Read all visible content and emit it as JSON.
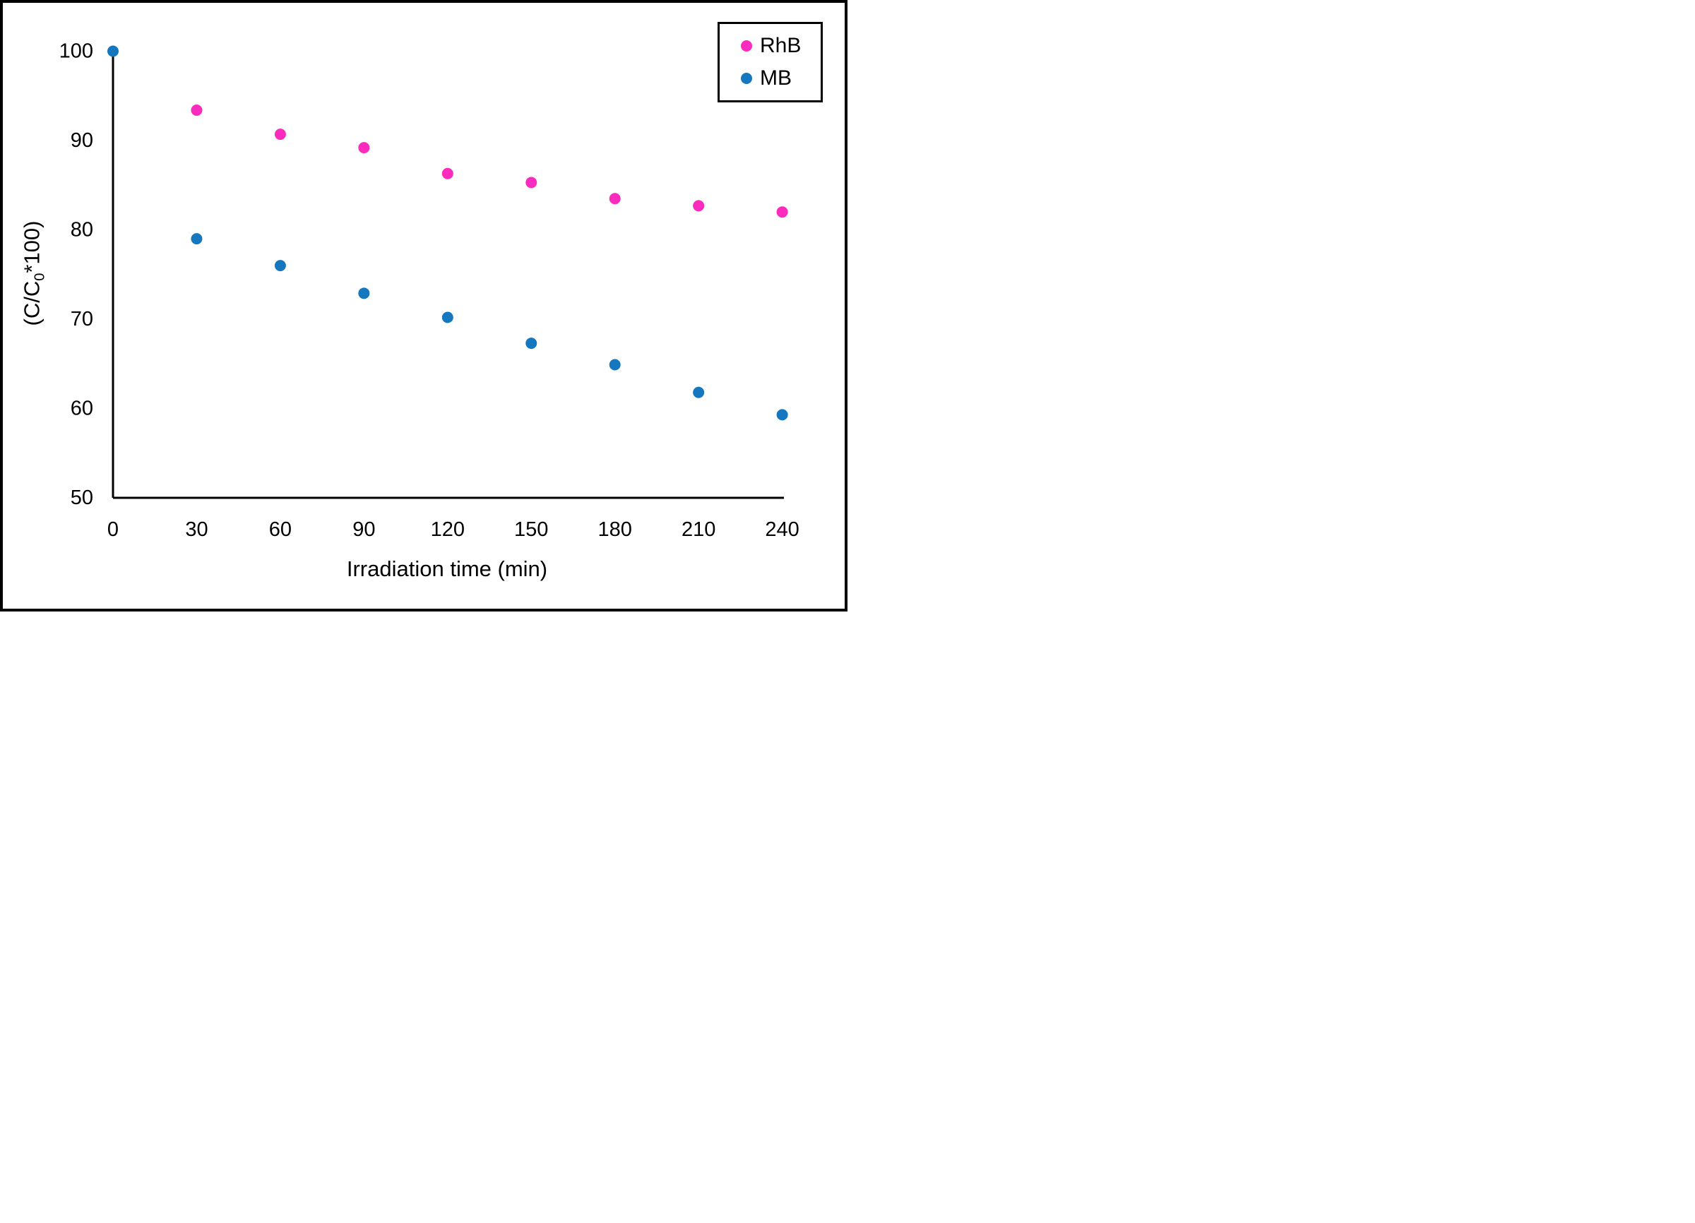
{
  "chart_data": {
    "type": "scatter",
    "title": "",
    "xlabel": "Irradiation time (min)",
    "ylabel": "(C/C0*100)",
    "ylabel_parts": {
      "pre": "(C/C",
      "sub": "0",
      "post": "*100)"
    },
    "xlim": [
      0,
      240
    ],
    "ylim": [
      50,
      100
    ],
    "x_ticks": [
      0,
      30,
      60,
      90,
      120,
      150,
      180,
      210,
      240
    ],
    "y_ticks": [
      50,
      60,
      70,
      80,
      90,
      100
    ],
    "grid": false,
    "legend_position": "top-right",
    "axis_color": "#000000",
    "series": [
      {
        "name": "RhB",
        "color": "#fb2bbd",
        "points": [
          [
            30,
            93.4
          ],
          [
            60,
            90.7
          ],
          [
            90,
            89.2
          ],
          [
            120,
            86.3
          ],
          [
            150,
            85.3
          ],
          [
            180,
            83.5
          ],
          [
            210,
            82.7
          ],
          [
            240,
            82.0
          ]
        ]
      },
      {
        "name": "MB",
        "color": "#1577be",
        "points": [
          [
            0,
            100
          ],
          [
            30,
            79.0
          ],
          [
            60,
            76.0
          ],
          [
            90,
            72.9
          ],
          [
            120,
            70.2
          ],
          [
            150,
            67.3
          ],
          [
            180,
            64.9
          ],
          [
            210,
            61.8
          ],
          [
            240,
            59.3
          ]
        ]
      }
    ]
  },
  "figure": {
    "background": "#ffffff",
    "border_color": "#000000"
  }
}
